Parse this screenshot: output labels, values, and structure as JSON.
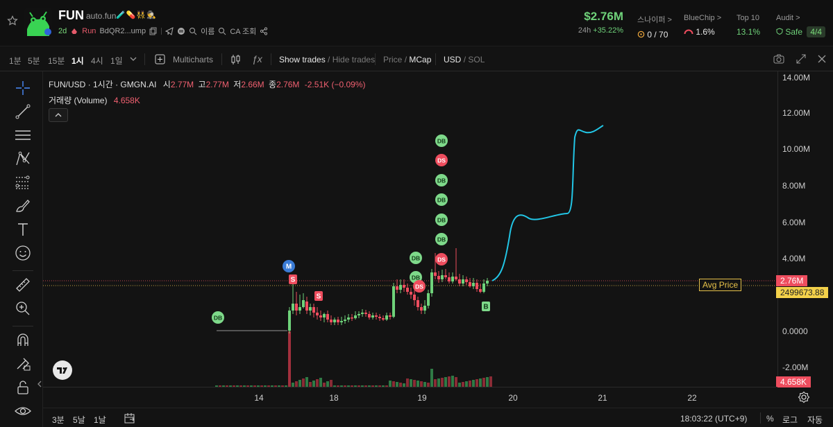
{
  "header": {
    "token_name": "FUN",
    "site": "auto.fun",
    "badges": "🧪💊👯🕵",
    "age": "2d",
    "run_label": "Run",
    "address": "BdQR2...ump",
    "name_label": "이름",
    "ca_label": "CA 조회",
    "price": "$2.76M",
    "period": "24h",
    "change": "+35.22%"
  },
  "stats": {
    "sniper_label": "스나이퍼 >",
    "sniper_value": "0 / 70",
    "bluechip_label": "BlueChip >",
    "bluechip_value": "1.6%",
    "top10_label": "Top 10",
    "top10_value": "13.1%",
    "audit_label": "Audit >",
    "audit_value": "Safe",
    "audit_score": "4/4"
  },
  "toolbar": {
    "intervals": [
      "1분",
      "5분",
      "15분",
      "1시",
      "4시",
      "1일"
    ],
    "active_interval": "1시",
    "multicharts": "Multicharts",
    "show_trades": "Show trades",
    "hide_trades": "Hide trades",
    "price": "Price",
    "mcap": "MCap",
    "usd": "USD",
    "sol": "SOL"
  },
  "legend": {
    "symbol": "FUN/USD · 1시간 · GMGN.AI",
    "open_label": "시",
    "open": "2.77M",
    "high_label": "고",
    "high": "2.77M",
    "low_label": "저",
    "low": "2.66M",
    "close_label": "종",
    "close": "2.76M",
    "change": "-2.51K (−0.09%)",
    "volume_label": "거래량 (Volume)",
    "volume": "4.658K"
  },
  "chart_data": {
    "type": "candlestick",
    "y_ticks": [
      "14.00M",
      "12.00M",
      "10.00M",
      "8.00M",
      "6.00M",
      "4.00M",
      "0.0000",
      "-2.00M"
    ],
    "x_ticks": [
      "14",
      "18",
      "19",
      "20",
      "21",
      "22"
    ],
    "current_price_tag": "2.76M",
    "avg_price_label": "Avg Price",
    "avg_price_value": "2499673.88",
    "volume_tag": "4.658K",
    "markers": [
      "DB",
      "M",
      "S",
      "S",
      "DB",
      "DB",
      "DS",
      "DS",
      "DB",
      "DS",
      "DB",
      "DB",
      "DB",
      "DB",
      "B"
    ]
  },
  "bottombar": {
    "range1": "3분",
    "range2": "5날",
    "range3": "1날",
    "time": "18:03:22 (UTC+9)",
    "percent": "%",
    "log": "로그",
    "auto": "자동"
  },
  "colors": {
    "up": "#6fd27a",
    "down": "#ee4d5e",
    "projection": "#22c6e6",
    "avg": "#e7c24a"
  }
}
